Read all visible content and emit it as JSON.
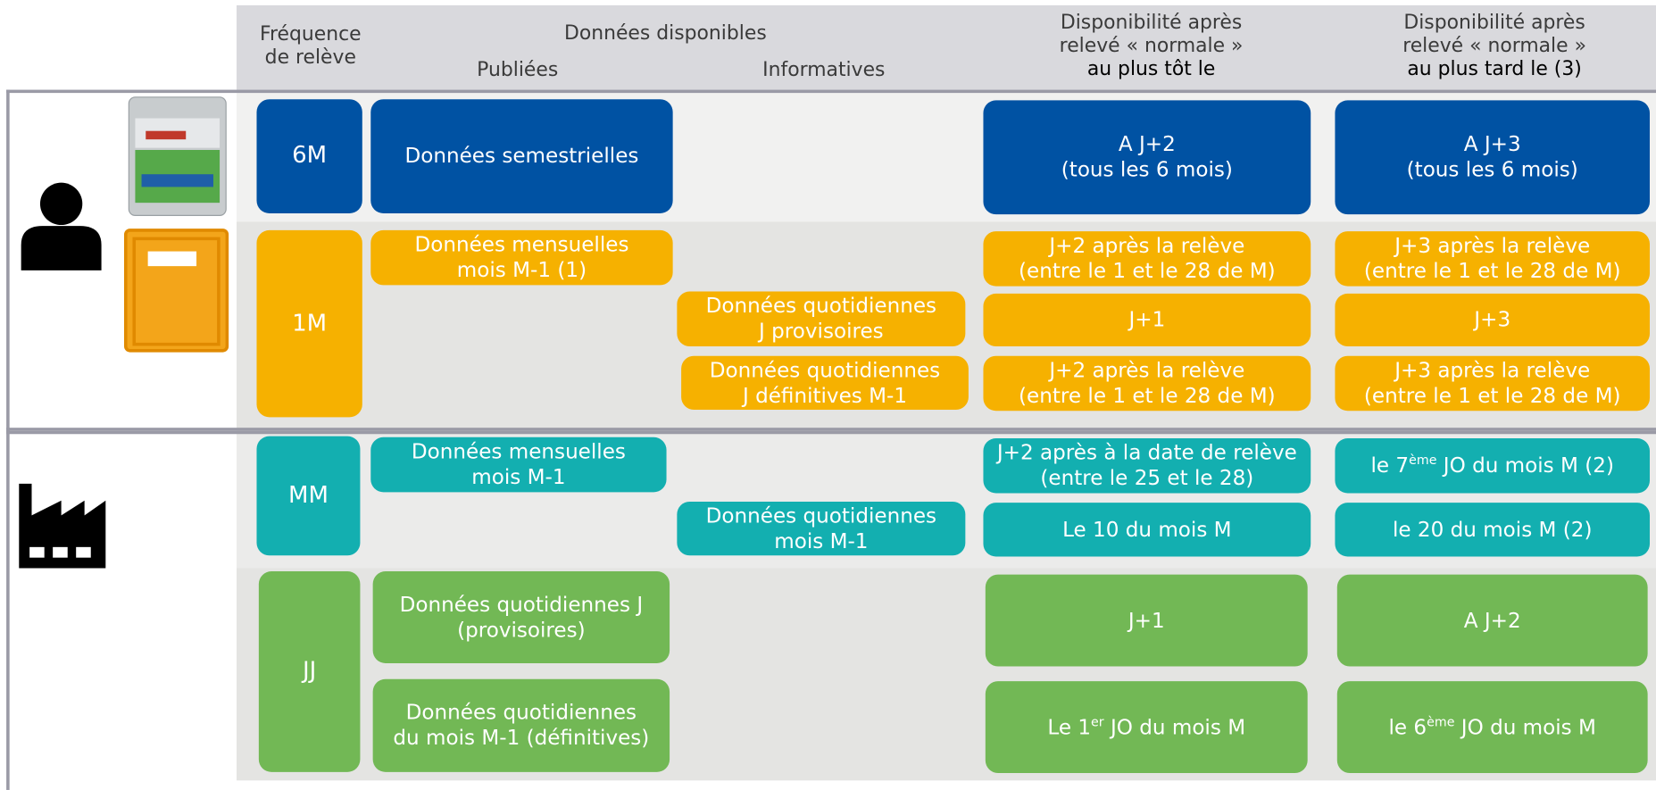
{
  "header": {
    "frequency": [
      "Fréquence",
      "de relève"
    ],
    "available": "Données disponibles",
    "published": "Publiées",
    "informative": "Informatives",
    "earliest": [
      "Disponibilité après",
      "relevé « normale »",
      "au plus tôt le"
    ],
    "latest": [
      "Disponibilité après",
      "relevé « normale »",
      "au plus tard le (3)"
    ]
  },
  "boxes": [
    {
      "lines": [
        "6M"
      ]
    },
    {
      "lines": [
        "Données semestrielles"
      ]
    },
    {
      "lines": [
        "A J+2",
        "(tous les 6 mois)"
      ]
    },
    {
      "lines": [
        "A J+3",
        "(tous les 6 mois)"
      ]
    },
    {
      "lines": [
        "1M"
      ]
    },
    {
      "lines": [
        "Données mensuelles",
        "mois M-1 (1)"
      ]
    },
    {
      "lines": [
        "Données quotidiennes",
        "J provisoires"
      ]
    },
    {
      "lines": [
        "Données quotidiennes",
        "J définitives M-1"
      ]
    },
    {
      "lines": [
        "J+2 après la relève",
        "(entre le 1 et le 28 de M)"
      ]
    },
    {
      "lines": [
        "J+3 après la relève",
        "(entre le 1 et le 28 de M)"
      ]
    },
    {
      "lines": [
        "J+1"
      ]
    },
    {
      "lines": [
        "J+3"
      ]
    },
    {
      "lines": [
        "J+2 après la relève",
        "(entre le 1 et le 28 de M)"
      ]
    },
    {
      "lines": [
        "J+3 après la relève",
        "(entre le 1 et le 28 de M)"
      ]
    },
    {
      "lines": [
        "MM"
      ]
    },
    {
      "lines": [
        "Données mensuelles",
        "mois M-1"
      ]
    },
    {
      "lines": [
        "Données quotidiennes",
        "mois M-1"
      ]
    },
    {
      "lines": [
        "J+2 après à la date de relève",
        "(entre le 25 et le 28)"
      ]
    },
    {
      "lines": [
        {
          "text": "le 7",
          "sup": "ème",
          "rest": " JO du mois M (2)"
        }
      ]
    },
    {
      "lines": [
        "Le 10 du mois M"
      ]
    },
    {
      "lines": [
        "le 20 du mois M (2)"
      ]
    },
    {
      "lines": [
        "JJ"
      ]
    },
    {
      "lines": [
        "Données quotidiennes J",
        "(provisoires)"
      ]
    },
    {
      "lines": [
        "Données quotidiennes",
        "du mois M-1 (définitives)"
      ]
    },
    {
      "lines": [
        "J+1"
      ]
    },
    {
      "lines": [
        "A J+2"
      ]
    },
    {
      "lines": [
        {
          "text": "Le 1",
          "sup": "er",
          "rest": " JO du mois M"
        }
      ]
    },
    {
      "lines": [
        {
          "text": "le 6",
          "sup": "ème",
          "rest": " JO du mois M"
        }
      ]
    }
  ]
}
